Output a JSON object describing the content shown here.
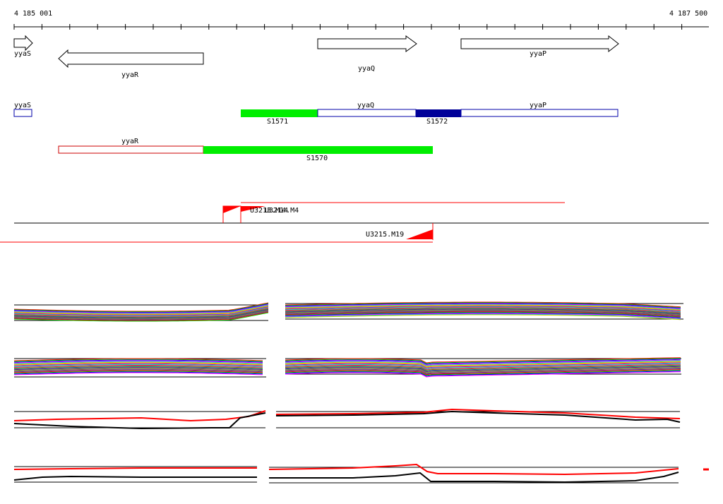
{
  "ruler": {
    "start_label": "4 185 001",
    "end_label": "4 187 500"
  },
  "genes": {
    "yyaS": {
      "label": "yyaS",
      "strand": "+"
    },
    "yyaR": {
      "label": "yyaR",
      "strand": "-"
    },
    "yyaQ": {
      "label": "yyaQ",
      "strand": "+"
    },
    "yyaP": {
      "label": "yyaP",
      "strand": "+"
    }
  },
  "segments": {
    "S1571": {
      "label": "S1571",
      "color": "#00ee00"
    },
    "S1572": {
      "label": "S1572",
      "color": "#000099"
    },
    "S1570": {
      "label": "S1570",
      "color": "#00ee00"
    },
    "plus_track_genes": [
      "yyaS",
      "yyaQ",
      "yyaP"
    ],
    "minus_track_genes": [
      "yyaR"
    ]
  },
  "features": {
    "u3213": {
      "label": "U3213.M14"
    },
    "m4": {
      "label": "U3214.M4"
    },
    "u3215": {
      "label": "U3215.M19"
    }
  },
  "colors": {
    "plus_track_outline": "#0000aa",
    "minus_track_outline": "#cc0000",
    "feature_red": "#ff0000",
    "segment_green": "#00ee00",
    "segment_navy": "#000099"
  }
}
